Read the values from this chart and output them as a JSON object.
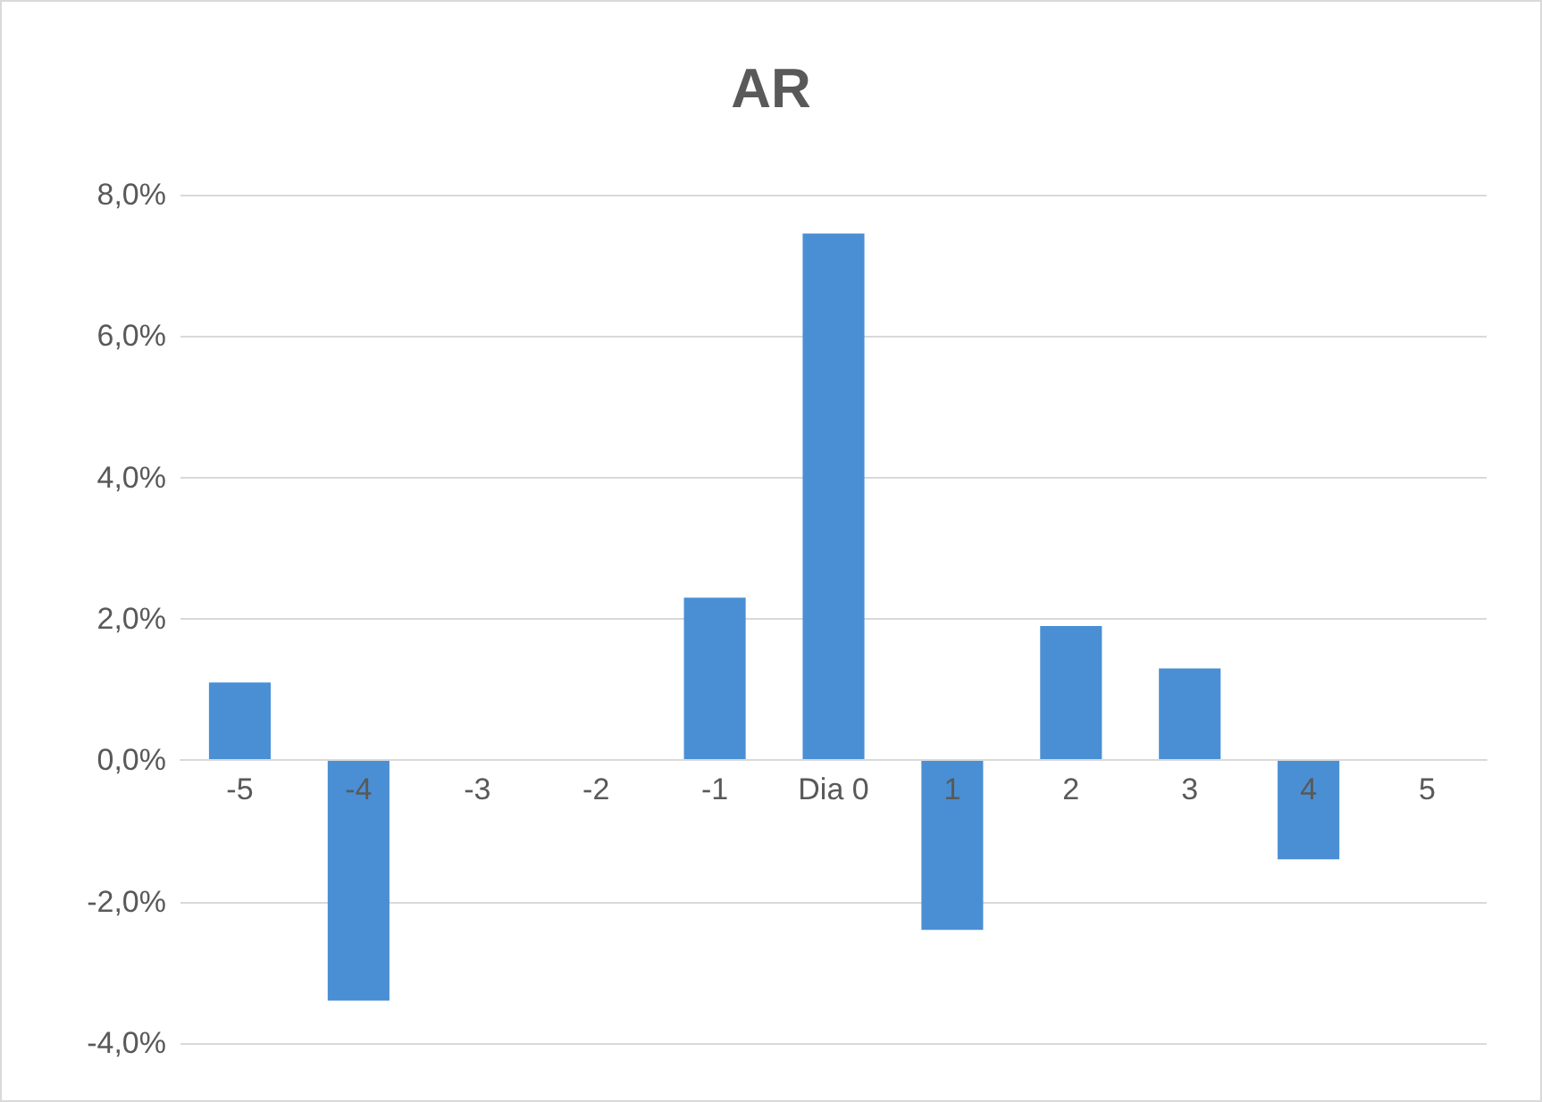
{
  "chart_data": {
    "type": "bar",
    "title": "AR",
    "categories": [
      "-5",
      "-4",
      "-3",
      "-2",
      "-1",
      "Dia 0",
      "1",
      "2",
      "3",
      "4",
      "5"
    ],
    "values": [
      1.1,
      -3.4,
      0,
      0,
      2.3,
      7.45,
      -2.4,
      1.9,
      1.3,
      -1.4,
      0
    ],
    "color": "#4a8fd4",
    "ylim": [
      -4,
      8
    ],
    "yticks": [
      {
        "value": -4,
        "label": "-4,0%"
      },
      {
        "value": -2,
        "label": "-2,0%"
      },
      {
        "value": 0,
        "label": "0,0%"
      },
      {
        "value": 2,
        "label": "2,0%"
      },
      {
        "value": 4,
        "label": "4,0%"
      },
      {
        "value": 6,
        "label": "6,0%"
      },
      {
        "value": 8,
        "label": "8,0%"
      }
    ],
    "grid": "y"
  }
}
